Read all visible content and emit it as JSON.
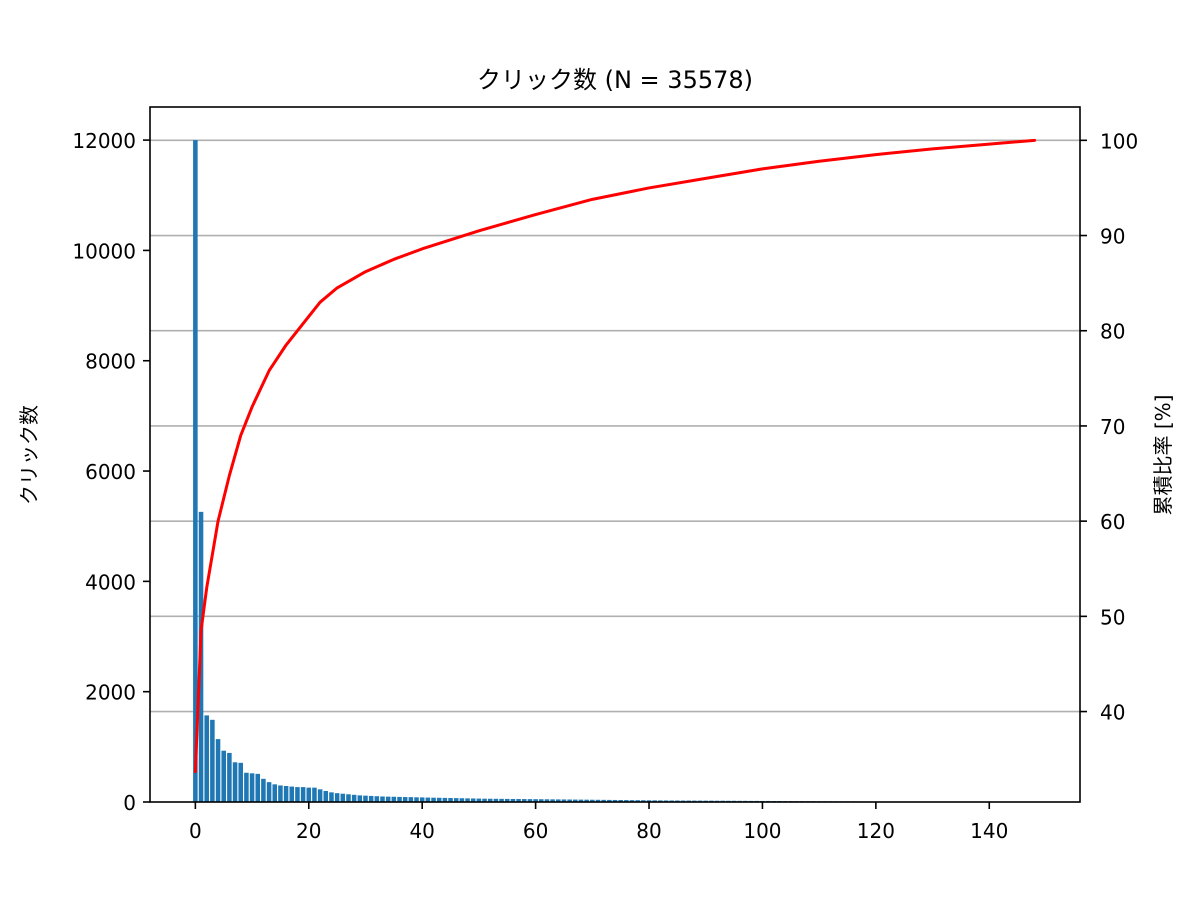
{
  "chart_data": {
    "type": "bar",
    "title": "クリック数 (N = 35578)",
    "xlabel": "",
    "ylabel": "クリック数",
    "y2label": "累積比率 [%]",
    "xlim": [
      -8,
      156
    ],
    "ylim": [
      0,
      12600
    ],
    "y2lim": [
      30.5,
      103.5
    ],
    "xticks": [
      0,
      20,
      40,
      60,
      80,
      100,
      120,
      140
    ],
    "yticks": [
      0,
      2000,
      4000,
      6000,
      8000,
      10000,
      12000
    ],
    "y2ticks": [
      40,
      50,
      60,
      70,
      80,
      90,
      100
    ],
    "grid": "y2",
    "colors": {
      "bars": "#1f77b4",
      "cumulative_line": "#ff0000",
      "grid": "#b0b0b0",
      "axes": "#000000"
    },
    "series": [
      {
        "type": "bar",
        "axis": "left",
        "x": [
          0,
          1,
          2,
          3,
          4,
          5,
          6,
          7,
          8,
          9,
          10,
          11,
          12,
          13,
          14,
          15,
          16,
          17,
          18,
          19,
          20,
          21,
          22,
          23,
          24,
          25,
          26,
          27,
          28,
          29,
          30,
          31,
          32,
          33,
          34,
          35,
          36,
          37,
          38,
          39,
          40,
          41,
          42,
          43,
          44,
          45,
          46,
          47,
          48,
          49,
          50,
          51,
          52,
          53,
          54,
          55,
          56,
          57,
          58,
          59,
          60,
          61,
          62,
          63,
          64,
          65,
          66,
          67,
          68,
          69,
          70,
          71,
          72,
          73,
          74,
          75,
          76,
          77,
          78,
          79,
          80,
          81,
          82,
          83,
          84,
          85,
          86,
          87,
          88,
          89,
          90,
          91,
          92,
          93,
          94,
          95,
          96,
          97,
          98,
          99,
          100,
          101,
          102,
          103,
          104,
          105,
          106,
          107,
          108,
          109,
          110,
          111,
          112,
          113,
          114,
          115,
          116,
          117,
          118,
          119,
          120,
          121,
          122,
          123,
          124,
          125,
          126,
          127,
          128,
          129,
          130,
          131,
          132,
          133,
          134,
          135,
          136,
          137,
          138,
          139,
          140,
          141,
          142
        ],
        "values": [
          12000,
          5260,
          1570,
          1490,
          1140,
          930,
          890,
          720,
          710,
          530,
          520,
          510,
          420,
          360,
          320,
          300,
          290,
          280,
          270,
          270,
          260,
          260,
          230,
          200,
          175,
          160,
          150,
          140,
          130,
          120,
          115,
          110,
          105,
          100,
          97,
          95,
          92,
          90,
          88,
          85,
          83,
          80,
          78,
          76,
          74,
          72,
          70,
          68,
          66,
          64,
          62,
          60,
          59,
          58,
          57,
          56,
          55,
          54,
          53,
          52,
          51,
          50,
          49,
          48,
          47,
          46,
          45,
          44,
          43,
          42,
          41,
          40,
          39,
          38,
          37,
          36,
          35,
          34,
          33,
          32,
          31,
          30,
          29,
          28,
          27,
          27,
          26,
          26,
          25,
          25,
          24,
          24,
          23,
          23,
          22,
          22,
          21,
          21,
          20,
          20,
          19,
          19,
          18,
          18,
          17,
          17,
          16,
          16,
          15,
          15,
          14,
          14,
          13,
          13,
          12,
          12,
          11,
          11,
          10,
          10,
          9,
          9,
          9,
          8,
          8,
          8,
          7,
          7,
          7,
          6,
          6,
          6,
          5,
          5,
          5,
          5,
          4,
          4,
          4,
          4,
          3,
          3,
          3
        ]
      },
      {
        "type": "line",
        "axis": "right",
        "x": [
          0,
          1,
          2,
          4,
          6,
          8,
          10,
          13,
          16,
          20,
          22,
          25,
          30,
          35,
          40,
          50,
          60,
          65,
          70,
          80,
          90,
          100,
          110,
          120,
          130,
          140,
          148
        ],
        "values": [
          33.7,
          48.5,
          53.0,
          60.0,
          64.8,
          69.0,
          72.0,
          75.8,
          78.5,
          81.5,
          83.0,
          84.5,
          86.2,
          87.5,
          88.6,
          90.5,
          92.2,
          93.0,
          93.8,
          95.0,
          96.0,
          97.0,
          97.8,
          98.5,
          99.1,
          99.6,
          100.0
        ]
      }
    ]
  }
}
